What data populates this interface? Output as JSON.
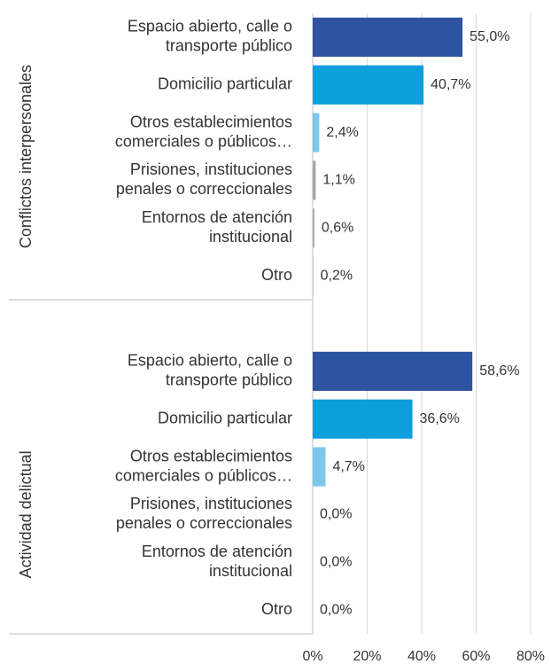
{
  "chart_data": {
    "type": "bar",
    "orientation": "horizontal",
    "categories": [
      [
        "Espacio abierto, calle o",
        "transporte público"
      ],
      [
        "Domicilio particular"
      ],
      [
        "Otros establecimientos",
        "comerciales o públicos…"
      ],
      [
        "Prisiones, instituciones",
        "penales o correccionales"
      ],
      [
        "Entornos de atención",
        "institucional"
      ],
      [
        "Otro"
      ]
    ],
    "colors": [
      "#2e54a1",
      "#0d9fdc",
      "#7cc7ea",
      "#a6a6a6",
      "#a6a6a6",
      "#a6a6a6"
    ],
    "groups": [
      {
        "name": "Conflictos interpersonales",
        "values": [
          55.0,
          40.7,
          2.4,
          1.1,
          0.6,
          0.2
        ],
        "value_labels": [
          "55,0%",
          "40,7%",
          "2,4%",
          "1,1%",
          "0,6%",
          "0,2%"
        ]
      },
      {
        "name": "Actividad delictual",
        "values": [
          58.6,
          36.6,
          4.7,
          0.0,
          0.0,
          0.0
        ],
        "value_labels": [
          "58,6%",
          "36,6%",
          "4,7%",
          "0,0%",
          "0,0%",
          "0,0%"
        ]
      }
    ],
    "xlim": [
      0,
      80
    ],
    "xticks": [
      {
        "value": 0,
        "label": "0%"
      },
      {
        "value": 20,
        "label": "20%"
      },
      {
        "value": 40,
        "label": "40%"
      },
      {
        "value": 60,
        "label": "60%"
      },
      {
        "value": 80,
        "label": "80%"
      }
    ],
    "grid": true
  }
}
